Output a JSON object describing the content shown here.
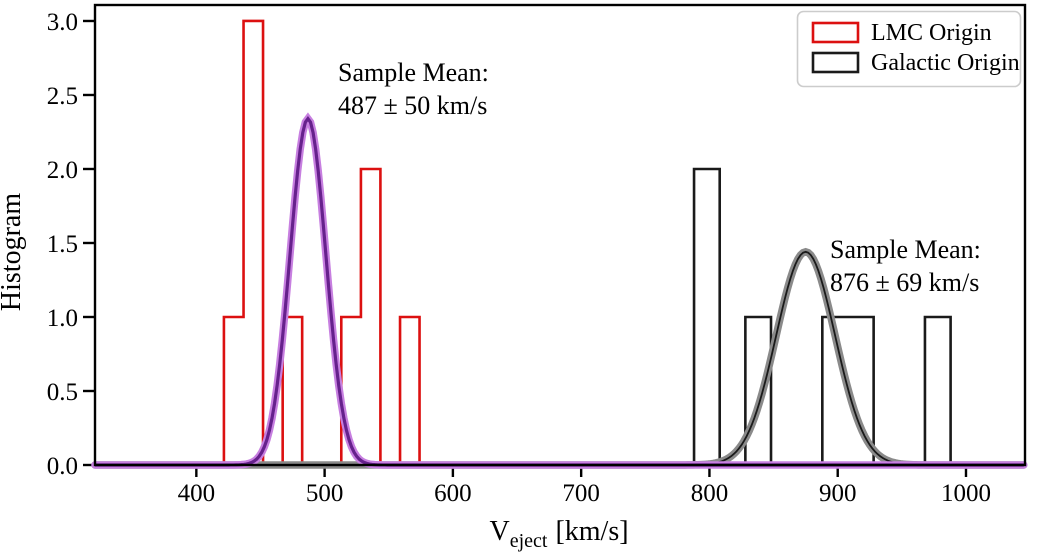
{
  "figure": {
    "background": "#ffffff"
  },
  "axes": {
    "ylabel": "Histogram",
    "xlabel_v": "V",
    "xlabel_sub": "eject",
    "xlabel_unit": "[km/s]",
    "x_ticks": [
      400,
      500,
      600,
      700,
      800,
      900,
      1000
    ],
    "y_ticks": [
      "0.0",
      "0.5",
      "1.0",
      "1.5",
      "2.0",
      "2.5",
      "3.0"
    ],
    "xlim": [
      321,
      1046
    ],
    "ylim": [
      0,
      3.108
    ],
    "spine_color": "#000000"
  },
  "legend": {
    "position": "top-right",
    "border_color": "#cccccc",
    "items": [
      {
        "label": "LMC Origin",
        "color": "#dc1010"
      },
      {
        "label": "Galactic Origin",
        "color": "#1a1a1a"
      }
    ]
  },
  "annotations": {
    "lmc": {
      "line1": "Sample Mean:",
      "line2": "487 ± 50 km/s",
      "color": "#34207c"
    },
    "galactic": {
      "line1": "Sample Mean:",
      "line2": "876 ± 69 km/s",
      "color": "#111111"
    }
  },
  "chart_data": [
    {
      "type": "histogram-step",
      "name": "LMC Origin",
      "color": "#dc1010",
      "bin_edges": [
        421.5,
        436.8,
        452.0,
        467.3,
        482.5,
        497.8,
        513.0,
        528.3,
        543.5,
        558.8,
        574.0
      ],
      "counts": [
        1,
        3,
        0,
        1,
        0,
        0,
        1,
        2,
        0,
        1
      ]
    },
    {
      "type": "histogram-step",
      "name": "Galactic Origin",
      "color": "#1a1a1a",
      "bin_edges": [
        788,
        808,
        828,
        848,
        868,
        888,
        908,
        928,
        948,
        968,
        988
      ],
      "counts": [
        2,
        0,
        1,
        0,
        0,
        1,
        1,
        0,
        0,
        1
      ]
    },
    {
      "type": "gaussian-fit",
      "name": "Galactic fit",
      "mean": 875,
      "sigma": 23,
      "amplitude": 1.44,
      "halo_color": "#8a8a8a",
      "core_color": "#1a1a1a"
    },
    {
      "type": "gaussian-fit",
      "name": "LMC fit",
      "mean": 487,
      "sigma": 14,
      "amplitude": 2.34,
      "halo_color": "#c77fe0",
      "core_color": "#66218c"
    }
  ]
}
